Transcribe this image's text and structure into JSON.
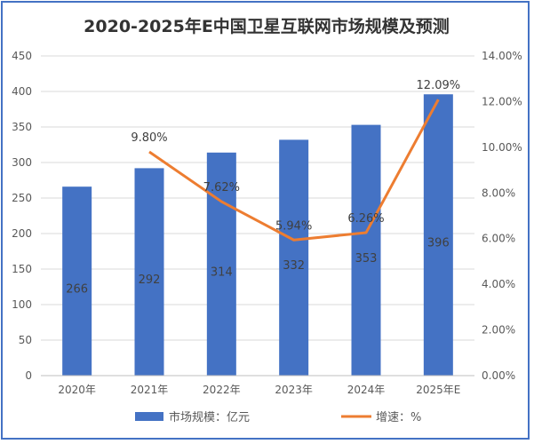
{
  "chart_data": {
    "type": "bar+line",
    "title": "2020-2025年E中国卫星互联网市场规模及预测",
    "categories": [
      "2020年",
      "2021年",
      "2022年",
      "2023年",
      "2024年",
      "2025年E"
    ],
    "series": [
      {
        "name": "市场规模：亿元",
        "type": "bar",
        "axis": "left",
        "color": "#4472c4",
        "values": [
          266,
          292,
          314,
          332,
          353,
          396
        ],
        "labels": [
          "266",
          "292",
          "314",
          "332",
          "353",
          "396"
        ]
      },
      {
        "name": "增速：%",
        "type": "line",
        "axis": "right",
        "color": "#ed7d31",
        "values": [
          null,
          9.8,
          7.62,
          5.94,
          6.26,
          12.09
        ],
        "labels": [
          "",
          "9.80%",
          "7.62%",
          "5.94%",
          "6.26%",
          "12.09%"
        ]
      }
    ],
    "y_left": {
      "min": 0,
      "max": 450,
      "step": 50,
      "ticks": [
        "0",
        "50",
        "100",
        "150",
        "200",
        "250",
        "300",
        "350",
        "400",
        "450"
      ]
    },
    "y_right": {
      "min": 0,
      "max": 14,
      "step": 2,
      "ticks": [
        "0.00%",
        "2.00%",
        "4.00%",
        "6.00%",
        "8.00%",
        "10.00%",
        "12.00%",
        "14.00%"
      ]
    },
    "grid": true,
    "legend": "bottom"
  }
}
